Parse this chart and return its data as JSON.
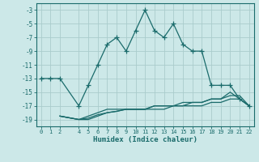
{
  "xlabel": "Humidex (Indice chaleur)",
  "bg_color": "#cce8e8",
  "line_color": "#1a6b6b",
  "grid_color": "#aacccc",
  "xlim": [
    -0.5,
    22.5
  ],
  "ylim": [
    -20,
    -2
  ],
  "xticks": [
    0,
    1,
    2,
    4,
    5,
    6,
    7,
    8,
    9,
    10,
    11,
    12,
    13,
    14,
    15,
    16,
    17,
    18,
    19,
    20,
    21,
    22
  ],
  "yticks": [
    -3,
    -5,
    -7,
    -9,
    -11,
    -13,
    -15,
    -17,
    -19
  ],
  "line1_x": [
    0,
    1,
    2,
    4,
    5,
    6,
    7,
    8,
    9,
    10,
    11,
    12,
    13,
    14,
    15,
    16,
    17,
    18,
    19,
    20,
    21,
    22
  ],
  "line1_y": [
    -13,
    -13,
    -13,
    -17,
    -14,
    -11,
    -8,
    -7,
    -9,
    -6,
    -3,
    -6,
    -7,
    -5,
    -8,
    -9,
    -9,
    -14,
    -14,
    -14,
    -16,
    -17
  ],
  "line2_x": [
    2,
    4,
    5,
    6,
    7,
    8,
    9,
    10,
    11,
    12,
    13,
    14,
    15,
    16,
    17,
    18,
    19,
    20,
    21,
    22
  ],
  "line2_y": [
    -18.5,
    -19,
    -18.5,
    -18,
    -17.5,
    -17.5,
    -17.5,
    -17.5,
    -17.5,
    -17,
    -17,
    -17,
    -16.5,
    -16.5,
    -16.5,
    -16,
    -16,
    -15.5,
    -15.5,
    -17
  ],
  "line3_x": [
    2,
    4,
    5,
    6,
    7,
    8,
    9,
    10,
    11,
    12,
    13,
    14,
    15,
    16,
    17,
    18,
    19,
    20,
    21,
    22
  ],
  "line3_y": [
    -18.5,
    -19,
    -18.8,
    -18.3,
    -18,
    -17.8,
    -17.5,
    -17.5,
    -17.5,
    -17,
    -17,
    -17,
    -17,
    -16.5,
    -16.5,
    -16,
    -16,
    -15,
    -16,
    -17
  ],
  "line4_x": [
    2,
    4,
    5,
    6,
    7,
    8,
    9,
    10,
    11,
    12,
    13,
    14,
    15,
    16,
    17,
    18,
    19,
    20,
    21,
    22
  ],
  "line4_y": [
    -18.5,
    -19,
    -19,
    -18.5,
    -18,
    -17.8,
    -17.5,
    -17.5,
    -17.5,
    -17.5,
    -17.5,
    -17,
    -17,
    -17,
    -17,
    -16.5,
    -16.5,
    -16,
    -16,
    -17
  ]
}
